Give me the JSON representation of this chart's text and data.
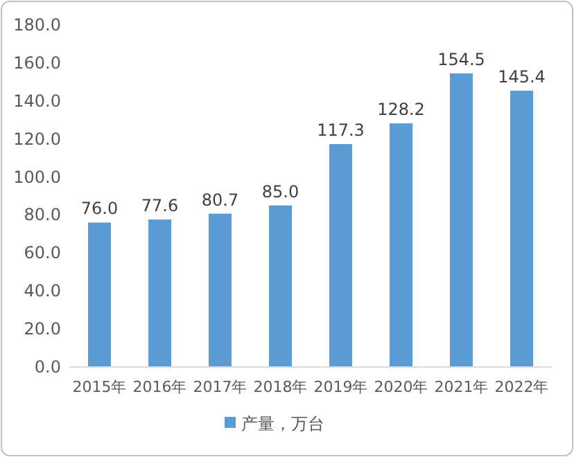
{
  "chart_data": {
    "type": "bar",
    "categories": [
      "2015年",
      "2016年",
      "2017年",
      "2018年",
      "2019年",
      "2020年",
      "2021年",
      "2022年"
    ],
    "series": [
      {
        "name": "产量，万台",
        "color": "#5b9bd5",
        "values": [
          76.0,
          77.6,
          80.7,
          85.0,
          117.3,
          128.2,
          154.5,
          145.4
        ],
        "value_labels": [
          "76.0",
          "77.6",
          "80.7",
          "85.0",
          "117.3",
          "128.2",
          "154.5",
          "145.4"
        ]
      }
    ],
    "ylim": [
      0,
      180
    ],
    "yticks": [
      {
        "value": 0,
        "label": "0.0"
      },
      {
        "value": 20,
        "label": "20.0"
      },
      {
        "value": 40,
        "label": "40.0"
      },
      {
        "value": 60,
        "label": "60.0"
      },
      {
        "value": 80,
        "label": "80.0"
      },
      {
        "value": 100,
        "label": "100.0"
      },
      {
        "value": 120,
        "label": "120.0"
      },
      {
        "value": 140,
        "label": "140.0"
      },
      {
        "value": 160,
        "label": "160.0"
      },
      {
        "value": 180,
        "label": "180.0"
      }
    ],
    "legend": "bottom"
  }
}
